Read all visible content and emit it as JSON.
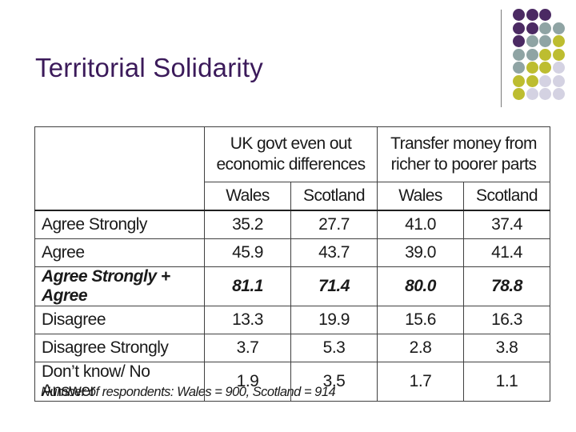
{
  "slide": {
    "title": "Territorial Solidarity",
    "footnote": "Number of respondents: Wales = 900, Scotland = 914"
  },
  "table": {
    "group_headers": [
      "UK govt even out economic differences",
      "Transfer money from richer to poorer parts"
    ],
    "sub_headers": [
      "Wales",
      "Scotland",
      "Wales",
      "Scotland"
    ],
    "rows": [
      {
        "label": "Agree Strongly",
        "values": [
          "35.2",
          "27.7",
          "41.0",
          "37.4"
        ]
      },
      {
        "label": "Agree",
        "values": [
          "45.9",
          "43.7",
          "39.0",
          "41.4"
        ]
      },
      {
        "label": "Agree Strongly + Agree",
        "values": [
          "81.1",
          "71.4",
          "80.0",
          "78.8"
        ]
      },
      {
        "label": "Disagree",
        "values": [
          "13.3",
          "19.9",
          "15.6",
          "16.3"
        ]
      },
      {
        "label": "Disagree Strongly",
        "values": [
          "3.7",
          "5.3",
          "2.8",
          "3.8"
        ]
      },
      {
        "label": "Don’t know/ No Answer",
        "values": [
          "1.9",
          "3.5",
          "1.7",
          "1.1"
        ]
      }
    ]
  },
  "decoration": {
    "colors": {
      "purple": "#4b2a63",
      "teal": "#8fa4a4",
      "olive": "#bdbd30",
      "lavender": "#d4d2e2"
    }
  }
}
